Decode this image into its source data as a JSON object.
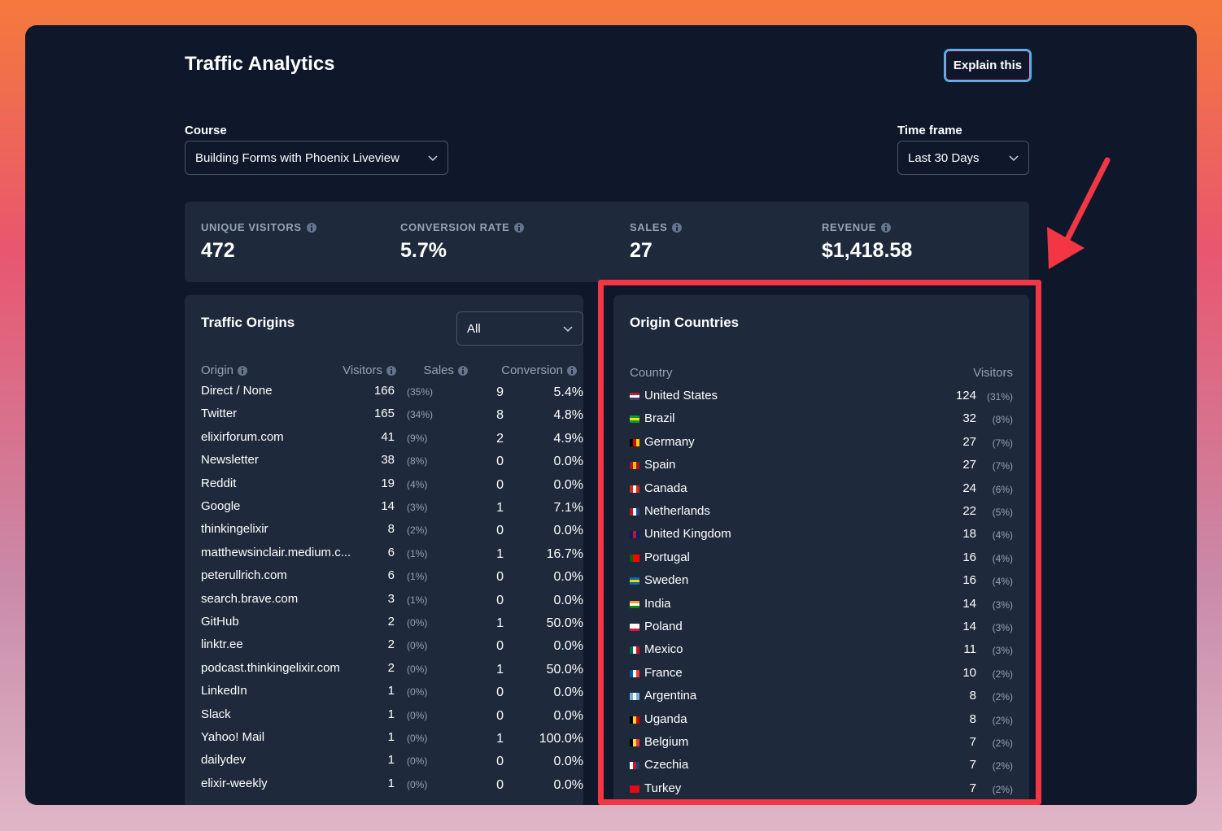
{
  "header": {
    "title": "Traffic Analytics",
    "button": "Explain this"
  },
  "filters": {
    "course": {
      "label": "Course",
      "value": "Building Forms with Phoenix Liveview"
    },
    "timeframe": {
      "label": "Time frame",
      "value": "Last 30 Days"
    }
  },
  "stats": [
    {
      "label": "UNIQUE VISITORS",
      "value": "472"
    },
    {
      "label": "CONVERSION RATE",
      "value": "5.7%"
    },
    {
      "label": "SALES",
      "value": "27"
    },
    {
      "label": "REVENUE",
      "value": "$1,418.58"
    }
  ],
  "origins": {
    "title": "Traffic Origins",
    "filter": "All",
    "columns": [
      "Origin",
      "Visitors",
      "Sales",
      "Conversion"
    ],
    "rows": [
      [
        "Direct / None",
        "166",
        "(35%)",
        "9",
        "5.4%"
      ],
      [
        "Twitter",
        "165",
        "(34%)",
        "8",
        "4.8%"
      ],
      [
        "elixirforum.com",
        "41",
        "(9%)",
        "2",
        "4.9%"
      ],
      [
        "Newsletter",
        "38",
        "(8%)",
        "0",
        "0.0%"
      ],
      [
        "Reddit",
        "19",
        "(4%)",
        "0",
        "0.0%"
      ],
      [
        "Google",
        "14",
        "(3%)",
        "1",
        "7.1%"
      ],
      [
        "thinkingelixir",
        "8",
        "(2%)",
        "0",
        "0.0%"
      ],
      [
        "matthewsinclair.medium.c...",
        "6",
        "(1%)",
        "1",
        "16.7%"
      ],
      [
        "peterullrich.com",
        "6",
        "(1%)",
        "0",
        "0.0%"
      ],
      [
        "search.brave.com",
        "3",
        "(1%)",
        "0",
        "0.0%"
      ],
      [
        "GitHub",
        "2",
        "(0%)",
        "1",
        "50.0%"
      ],
      [
        "linktr.ee",
        "2",
        "(0%)",
        "0",
        "0.0%"
      ],
      [
        "podcast.thinkingelixir.com",
        "2",
        "(0%)",
        "1",
        "50.0%"
      ],
      [
        "LinkedIn",
        "1",
        "(0%)",
        "0",
        "0.0%"
      ],
      [
        "Slack",
        "1",
        "(0%)",
        "0",
        "0.0%"
      ],
      [
        "Yahoo! Mail",
        "1",
        "(0%)",
        "1",
        "100.0%"
      ],
      [
        "dailydev",
        "1",
        "(0%)",
        "0",
        "0.0%"
      ],
      [
        "elixir-weekly",
        "1",
        "(0%)",
        "0",
        "0.0%"
      ]
    ]
  },
  "countries": {
    "title": "Origin Countries",
    "columns": [
      "Country",
      "Visitors"
    ],
    "rows": [
      [
        "United States",
        "124",
        "(31%)"
      ],
      [
        "Brazil",
        "32",
        "(8%)"
      ],
      [
        "Germany",
        "27",
        "(7%)"
      ],
      [
        "Spain",
        "27",
        "(7%)"
      ],
      [
        "Canada",
        "24",
        "(6%)"
      ],
      [
        "Netherlands",
        "22",
        "(5%)"
      ],
      [
        "United Kingdom",
        "18",
        "(4%)"
      ],
      [
        "Portugal",
        "16",
        "(4%)"
      ],
      [
        "Sweden",
        "16",
        "(4%)"
      ],
      [
        "India",
        "14",
        "(3%)"
      ],
      [
        "Poland",
        "14",
        "(3%)"
      ],
      [
        "Mexico",
        "11",
        "(3%)"
      ],
      [
        "France",
        "10",
        "(2%)"
      ],
      [
        "Argentina",
        "8",
        "(2%)"
      ],
      [
        "Uganda",
        "8",
        "(2%)"
      ],
      [
        "Belgium",
        "7",
        "(2%)"
      ],
      [
        "Czechia",
        "7",
        "(2%)"
      ],
      [
        "Turkey",
        "7",
        "(2%)"
      ]
    ]
  }
}
